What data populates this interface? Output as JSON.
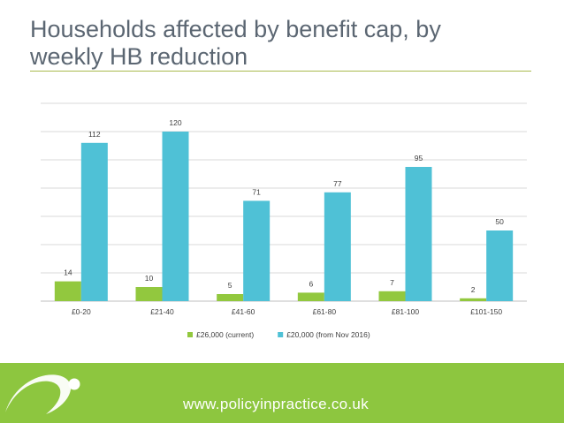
{
  "slide": {
    "title_line1": "Households affected by benefit cap, by",
    "title_line2": "weekly HB reduction",
    "footer_url": "www.policyinpractice.co.uk"
  },
  "colors": {
    "title": "#5b6672",
    "accent_rule": "#a8b94d",
    "footer": "#8dc63f",
    "series_current": "#92c83e",
    "series_nov2016": "#4fc1d6"
  },
  "chart_data": {
    "type": "bar",
    "title": "",
    "xlabel": "",
    "ylabel": "",
    "categories": [
      "£0-20",
      "£21-40",
      "£41-60",
      "£61-80",
      "£81-100",
      "£101-150"
    ],
    "series": [
      {
        "name": "£26,000 (current)",
        "color": "#92c83e",
        "values": [
          14,
          10,
          5,
          6,
          7,
          2
        ]
      },
      {
        "name": "£20,000 (from Nov 2016)",
        "color": "#4fc1d6",
        "values": [
          112,
          120,
          71,
          77,
          95,
          50
        ]
      }
    ],
    "ylim": [
      0,
      140
    ],
    "y_gridlines": [
      0,
      20,
      40,
      60,
      80,
      100,
      120,
      140
    ],
    "y_tick_labels_shown": false,
    "grid": true,
    "data_labels": true,
    "legend_position": "bottom"
  }
}
